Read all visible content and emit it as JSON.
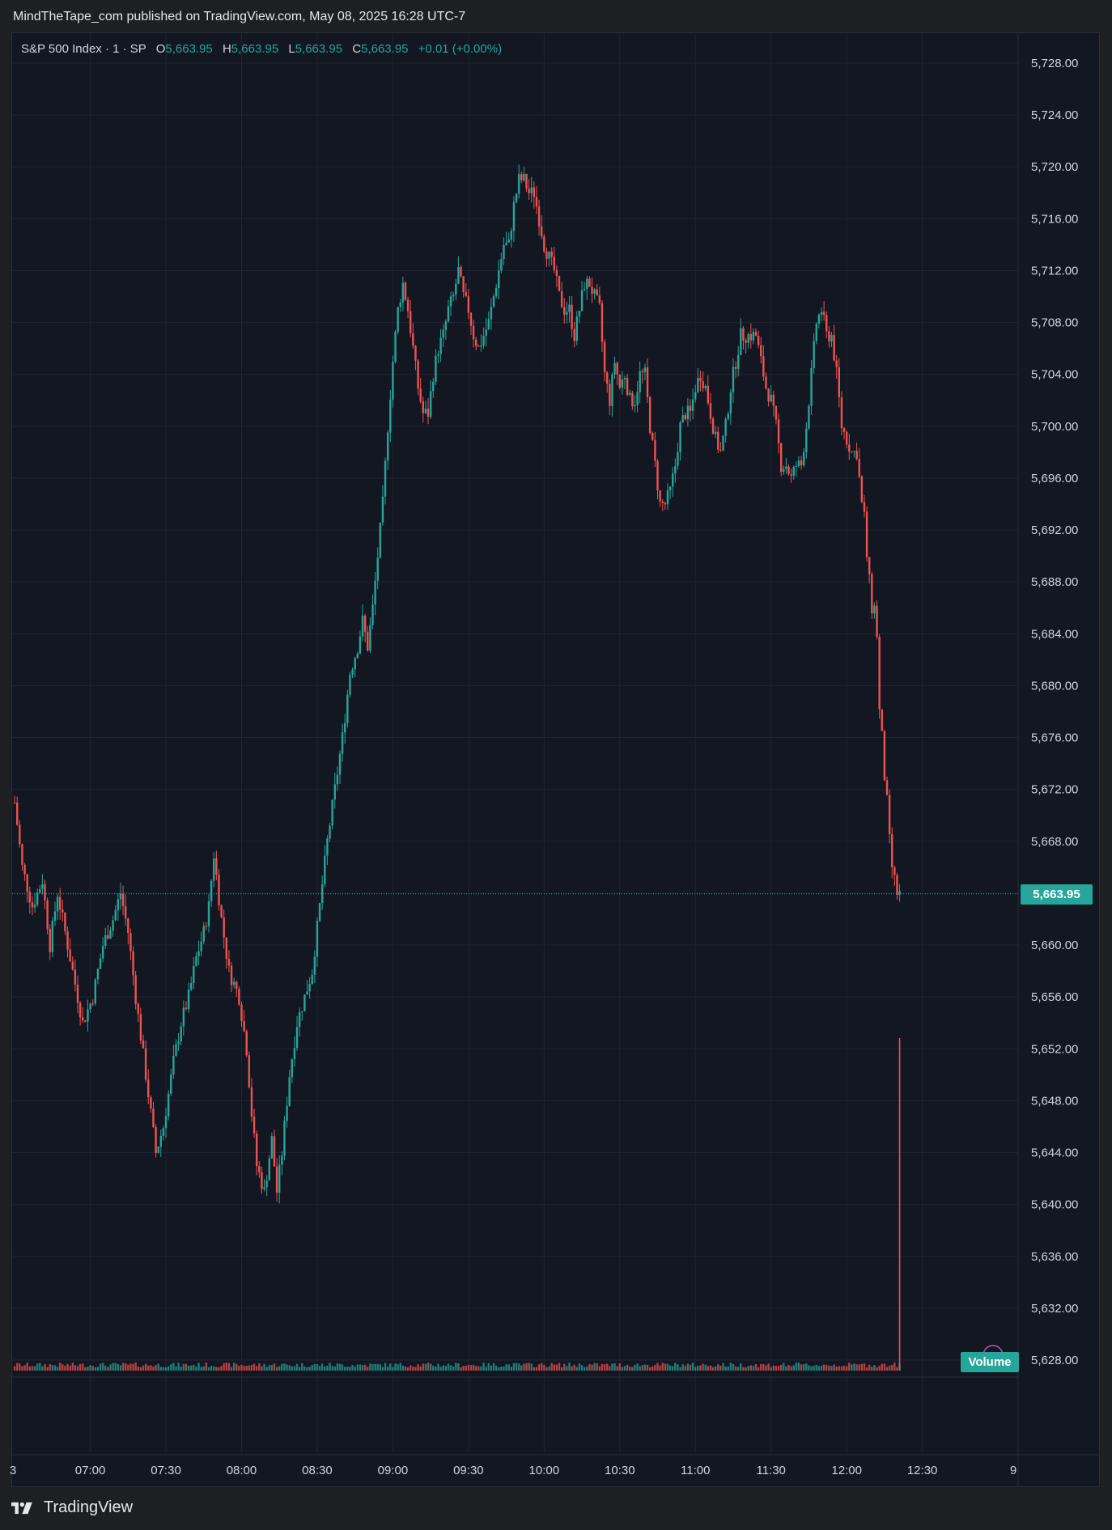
{
  "header": {
    "publish_line": "MindTheTape_com published on TradingView.com, May 08, 2025 16:28 UTC-7"
  },
  "legend": {
    "symbol": "S&P 500 Index · 1 · SP",
    "o_label": "O",
    "o_value": "5,663.95",
    "h_label": "H",
    "h_value": "5,663.95",
    "l_label": "L",
    "l_value": "5,663.95",
    "c_label": "C",
    "c_value": "5,663.95",
    "change": "+0.01 (+0.00%)"
  },
  "price_tag": "5,663.95",
  "volume_tag": "Volume",
  "footer": {
    "brand": "TradingView"
  },
  "colors": {
    "up": "#26a69a",
    "down": "#ef5350",
    "bg": "#131722",
    "grid": "#1f2433"
  },
  "chart_data": {
    "type": "candlestick",
    "title": "S&P 500 Index · 1 · SP",
    "interval": "1 minute",
    "y_ticks": [
      "5,628.00",
      "5,632.00",
      "5,636.00",
      "5,640.00",
      "5,644.00",
      "5,648.00",
      "5,652.00",
      "5,656.00",
      "5,660.00",
      "5,664.00",
      "5,668.00",
      "5,672.00",
      "5,676.00",
      "5,680.00",
      "5,684.00",
      "5,688.00",
      "5,692.00",
      "5,696.00",
      "5,700.00",
      "5,704.00",
      "5,708.00",
      "5,712.00",
      "5,716.00",
      "5,720.00",
      "5,724.00",
      "5,728.00"
    ],
    "y_tick_values": [
      5628,
      5632,
      5636,
      5640,
      5644,
      5648,
      5652,
      5656,
      5660,
      5664,
      5668,
      5672,
      5676,
      5680,
      5684,
      5688,
      5692,
      5696,
      5700,
      5704,
      5708,
      5712,
      5716,
      5720,
      5724,
      5728
    ],
    "ylim": [
      5625.8,
      5730.4
    ],
    "x_labels": [
      "07:00",
      "07:30",
      "08:00",
      "08:30",
      "09:00",
      "09:30",
      "10:00",
      "10:30",
      "11:00",
      "11:30",
      "12:00",
      "12:30"
    ],
    "x_label_minutes": [
      405,
      435,
      465,
      495,
      525,
      555,
      585,
      615,
      645,
      675,
      705,
      735
    ],
    "x_edge_labels": [
      "3",
      "9"
    ],
    "xlim_minutes": [
      374,
      773
    ],
    "last_price": 5663.95,
    "price_path": [
      [
        375,
        5671
      ],
      [
        378,
        5666
      ],
      [
        382,
        5663
      ],
      [
        386,
        5665
      ],
      [
        389,
        5660
      ],
      [
        392,
        5664
      ],
      [
        396,
        5660
      ],
      [
        398,
        5658
      ],
      [
        402,
        5654
      ],
      [
        406,
        5656
      ],
      [
        410,
        5660
      ],
      [
        414,
        5662
      ],
      [
        417,
        5664
      ],
      [
        420,
        5661
      ],
      [
        423,
        5656
      ],
      [
        427,
        5650
      ],
      [
        431,
        5644
      ],
      [
        434,
        5646
      ],
      [
        438,
        5651
      ],
      [
        441,
        5654
      ],
      [
        444,
        5656
      ],
      [
        447,
        5659
      ],
      [
        450,
        5661
      ],
      [
        452,
        5663
      ],
      [
        454,
        5667
      ],
      [
        457,
        5662
      ],
      [
        460,
        5658
      ],
      [
        464,
        5656
      ],
      [
        467,
        5652
      ],
      [
        469,
        5647
      ],
      [
        471,
        5643
      ],
      [
        474,
        5641
      ],
      [
        477,
        5645
      ],
      [
        479,
        5641
      ],
      [
        481,
        5644
      ],
      [
        484,
        5650
      ],
      [
        487,
        5654
      ],
      [
        490,
        5656
      ],
      [
        493,
        5658
      ],
      [
        496,
        5663
      ],
      [
        499,
        5668
      ],
      [
        502,
        5672
      ],
      [
        505,
        5676
      ],
      [
        508,
        5681
      ],
      [
        511,
        5683
      ],
      [
        513,
        5685
      ],
      [
        515,
        5683
      ],
      [
        517,
        5686
      ],
      [
        519,
        5690
      ],
      [
        521,
        5694
      ],
      [
        523,
        5700
      ],
      [
        525,
        5705
      ],
      [
        527,
        5709
      ],
      [
        529,
        5711
      ],
      [
        531,
        5709
      ],
      [
        533,
        5706
      ],
      [
        535,
        5703
      ],
      [
        537,
        5701
      ],
      [
        539,
        5701
      ],
      [
        541,
        5704
      ],
      [
        543,
        5706
      ],
      [
        545,
        5707
      ],
      [
        547,
        5709
      ],
      [
        549,
        5710
      ],
      [
        551,
        5712
      ],
      [
        553,
        5710
      ],
      [
        555,
        5709
      ],
      [
        557,
        5707
      ],
      [
        559,
        5706
      ],
      [
        561,
        5707
      ],
      [
        563,
        5708
      ],
      [
        565,
        5710
      ],
      [
        567,
        5712
      ],
      [
        569,
        5714
      ],
      [
        571,
        5714
      ],
      [
        573,
        5717
      ],
      [
        575,
        5719
      ],
      [
        577,
        5719
      ],
      [
        579,
        5718
      ],
      [
        581,
        5718
      ],
      [
        583,
        5716
      ],
      [
        585,
        5714
      ],
      [
        587,
        5713
      ],
      [
        589,
        5712
      ],
      [
        591,
        5710
      ],
      [
        593,
        5709
      ],
      [
        595,
        5709
      ],
      [
        597,
        5707
      ],
      [
        599,
        5709
      ],
      [
        601,
        5711
      ],
      [
        603,
        5711
      ],
      [
        605,
        5710
      ],
      [
        607,
        5709
      ],
      [
        609,
        5704
      ],
      [
        611,
        5702
      ],
      [
        613,
        5705
      ],
      [
        615,
        5703
      ],
      [
        617,
        5704
      ],
      [
        619,
        5702
      ],
      [
        621,
        5702
      ],
      [
        623,
        5704
      ],
      [
        625,
        5704
      ],
      [
        627,
        5700
      ],
      [
        629,
        5697
      ],
      [
        631,
        5694
      ],
      [
        633,
        5694
      ],
      [
        635,
        5695
      ],
      [
        637,
        5697
      ],
      [
        639,
        5700
      ],
      [
        641,
        5701
      ],
      [
        643,
        5701
      ],
      [
        645,
        5703
      ],
      [
        647,
        5704
      ],
      [
        649,
        5703
      ],
      [
        651,
        5701
      ],
      [
        653,
        5699
      ],
      [
        655,
        5698
      ],
      [
        657,
        5700
      ],
      [
        659,
        5703
      ],
      [
        661,
        5705
      ],
      [
        663,
        5707
      ],
      [
        665,
        5707
      ],
      [
        667,
        5707
      ],
      [
        669,
        5707
      ],
      [
        671,
        5705
      ],
      [
        673,
        5703
      ],
      [
        675,
        5702
      ],
      [
        677,
        5700
      ],
      [
        679,
        5697
      ],
      [
        681,
        5697
      ],
      [
        683,
        5696
      ],
      [
        685,
        5697
      ],
      [
        687,
        5697
      ],
      [
        689,
        5700
      ],
      [
        691,
        5704
      ],
      [
        693,
        5708
      ],
      [
        695,
        5709
      ],
      [
        697,
        5707
      ],
      [
        699,
        5707
      ],
      [
        701,
        5704
      ],
      [
        703,
        5700
      ],
      [
        705,
        5699
      ],
      [
        707,
        5698
      ],
      [
        709,
        5698
      ],
      [
        711,
        5694
      ],
      [
        712,
        5693
      ],
      [
        713,
        5690
      ],
      [
        714,
        5688
      ],
      [
        715,
        5686
      ],
      [
        716,
        5686
      ],
      [
        717,
        5684
      ],
      [
        718,
        5678
      ],
      [
        719,
        5676
      ],
      [
        720,
        5673
      ],
      [
        721,
        5671
      ],
      [
        722,
        5668
      ],
      [
        723,
        5666
      ],
      [
        724,
        5665
      ],
      [
        725,
        5664
      ],
      [
        726,
        5663.95
      ]
    ]
  }
}
